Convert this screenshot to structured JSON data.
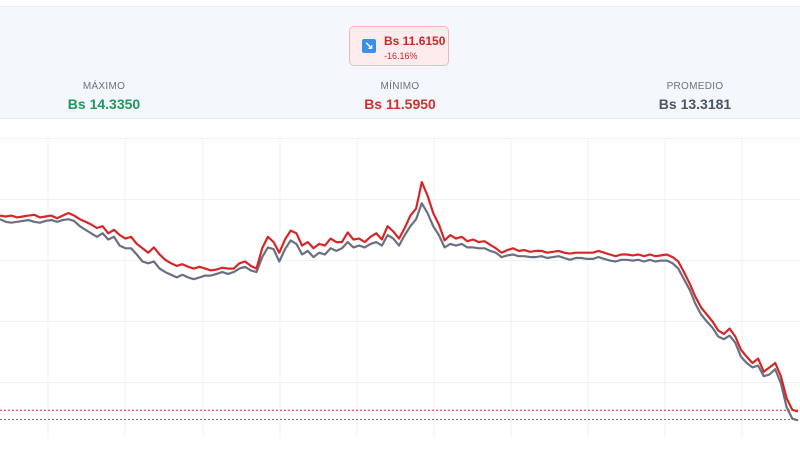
{
  "badge": {
    "value": "Bs 11.6150",
    "percent": "-16.16%",
    "icon": "trend-down-arrow-icon"
  },
  "stats": {
    "max": {
      "label": "MÁXIMO",
      "value": "Bs 14.3350",
      "color": "#1a9a5c"
    },
    "min": {
      "label": "MÍNIMO",
      "value": "Bs 11.5950",
      "color": "#d32f2f"
    },
    "avg": {
      "label": "PROMEDIO",
      "value": "Bs 13.3181",
      "color": "#4b5563"
    }
  },
  "colors": {
    "red_series": "#d62728",
    "gray_series": "#6b7080",
    "grid": "#eef1f5"
  },
  "chart_data": {
    "type": "line",
    "grid": true,
    "ylim": [
      11.3,
      14.7
    ],
    "reference_lines": [
      {
        "value": 11.615,
        "color": "#d62728",
        "style": "dotted"
      },
      {
        "value": 11.51,
        "color": "#6b7080",
        "style": "dotted"
      }
    ],
    "series": [
      {
        "color": "#d62728",
        "values": [
          13.82,
          13.81,
          13.82,
          13.8,
          13.81,
          13.82,
          13.83,
          13.8,
          13.81,
          13.82,
          13.79,
          13.82,
          13.85,
          13.82,
          13.78,
          13.75,
          13.72,
          13.68,
          13.7,
          13.62,
          13.66,
          13.6,
          13.56,
          13.58,
          13.5,
          13.45,
          13.4,
          13.46,
          13.38,
          13.32,
          13.28,
          13.25,
          13.27,
          13.24,
          13.22,
          13.24,
          13.22,
          13.2,
          13.21,
          13.23,
          13.22,
          13.22,
          13.28,
          13.3,
          13.25,
          13.22,
          13.45,
          13.58,
          13.52,
          13.4,
          13.55,
          13.65,
          13.62,
          13.48,
          13.52,
          13.45,
          13.5,
          13.48,
          13.56,
          13.52,
          13.52,
          13.63,
          13.55,
          13.56,
          13.52,
          13.58,
          13.62,
          13.55,
          13.7,
          13.64,
          13.56,
          13.68,
          13.82,
          13.9,
          14.2,
          14.05,
          13.85,
          13.72,
          13.54,
          13.6,
          13.56,
          13.58,
          13.53,
          13.55,
          13.52,
          13.53,
          13.49,
          13.45,
          13.4,
          13.43,
          13.45,
          13.42,
          13.43,
          13.41,
          13.42,
          13.42,
          13.4,
          13.41,
          13.42,
          13.4,
          13.39,
          13.4,
          13.4,
          13.4,
          13.4,
          13.42,
          13.4,
          13.38,
          13.36,
          13.38,
          13.38,
          13.37,
          13.38,
          13.36,
          13.38,
          13.36,
          13.37,
          13.38,
          13.35,
          13.3,
          13.18,
          13.05,
          12.9,
          12.78,
          12.7,
          12.62,
          12.52,
          12.48,
          12.54,
          12.45,
          12.3,
          12.22,
          12.15,
          12.2,
          12.05,
          12.1,
          12.15,
          12.0,
          11.75,
          11.62,
          11.6
        ]
      },
      {
        "color": "#6b7080",
        "values": [
          13.78,
          13.75,
          13.74,
          13.75,
          13.76,
          13.77,
          13.75,
          13.74,
          13.76,
          13.77,
          13.75,
          13.77,
          13.78,
          13.76,
          13.7,
          13.66,
          13.62,
          13.58,
          13.62,
          13.55,
          13.58,
          13.48,
          13.45,
          13.45,
          13.38,
          13.3,
          13.28,
          13.3,
          13.22,
          13.18,
          13.15,
          13.12,
          13.15,
          13.12,
          13.1,
          13.12,
          13.14,
          13.14,
          13.16,
          13.18,
          13.16,
          13.18,
          13.22,
          13.24,
          13.2,
          13.18,
          13.35,
          13.46,
          13.44,
          13.3,
          13.44,
          13.54,
          13.5,
          13.38,
          13.42,
          13.35,
          13.4,
          13.38,
          13.45,
          13.42,
          13.45,
          13.52,
          13.46,
          13.48,
          13.46,
          13.5,
          13.52,
          13.48,
          13.6,
          13.56,
          13.48,
          13.6,
          13.7,
          13.78,
          13.96,
          13.85,
          13.7,
          13.6,
          13.46,
          13.5,
          13.48,
          13.5,
          13.46,
          13.46,
          13.45,
          13.45,
          13.42,
          13.4,
          13.35,
          13.37,
          13.38,
          13.36,
          13.36,
          13.35,
          13.35,
          13.36,
          13.34,
          13.35,
          13.36,
          13.34,
          13.32,
          13.34,
          13.34,
          13.33,
          13.33,
          13.35,
          13.33,
          13.31,
          13.3,
          13.32,
          13.32,
          13.31,
          13.32,
          13.3,
          13.32,
          13.3,
          13.31,
          13.31,
          13.28,
          13.22,
          13.1,
          12.98,
          12.82,
          12.7,
          12.62,
          12.55,
          12.45,
          12.42,
          12.46,
          12.38,
          12.22,
          12.15,
          12.1,
          12.12,
          12.0,
          12.02,
          12.08,
          11.92,
          11.65,
          11.52,
          11.5
        ]
      }
    ]
  }
}
